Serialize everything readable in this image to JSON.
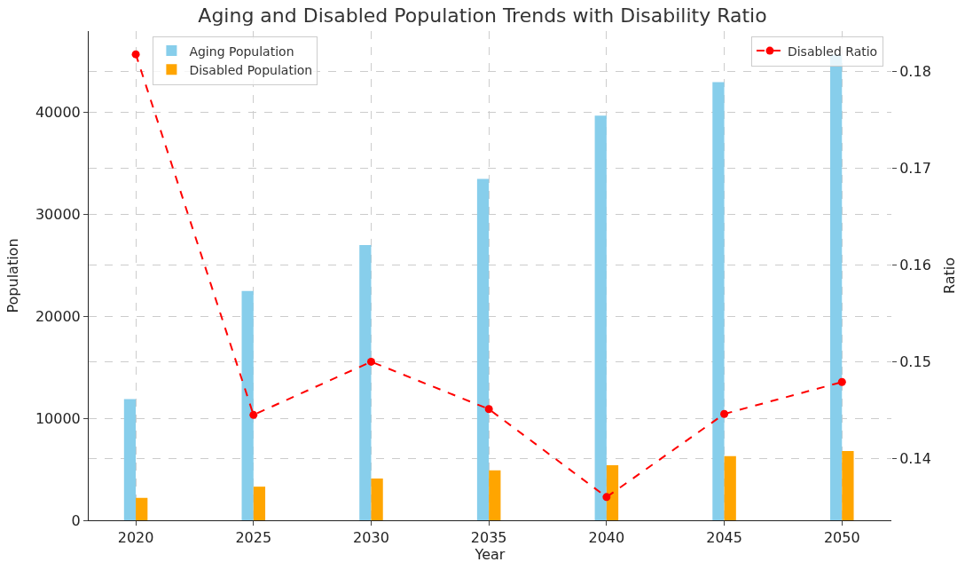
{
  "chart_data": {
    "type": "bar",
    "title": "Aging and Disabled Population Trends with Disability Ratio",
    "xlabel": "Year",
    "ylabel": "Population",
    "y2label": "Ratio",
    "categories": [
      "2020",
      "2025",
      "2030",
      "2035",
      "2040",
      "2045",
      "2050"
    ],
    "series": [
      {
        "name": "Aging Population",
        "color": "#87ceeb",
        "values": [
          11900,
          22500,
          27000,
          33500,
          39700,
          43000,
          45700
        ]
      },
      {
        "name": "Disabled Population",
        "color": "#ffa500",
        "values": [
          2200,
          3300,
          4100,
          4900,
          5400,
          6300,
          6800
        ]
      },
      {
        "name": "Disabled Ratio",
        "type": "line",
        "axis": "y2",
        "color": "#ff0000",
        "marker": "circle",
        "line_style": "dashed",
        "values": [
          0.1818,
          0.1445,
          0.15,
          0.1451,
          0.136,
          0.1446,
          0.1479
        ]
      }
    ],
    "ylim": [
      0,
      48000
    ],
    "yticks": [
      0,
      10000,
      20000,
      30000,
      40000
    ],
    "y2lim": [
      0.1336,
      0.1842
    ],
    "y2ticks": [
      0.14,
      0.15,
      0.16,
      0.17,
      0.18
    ],
    "grid": true,
    "legend": "top left"
  }
}
